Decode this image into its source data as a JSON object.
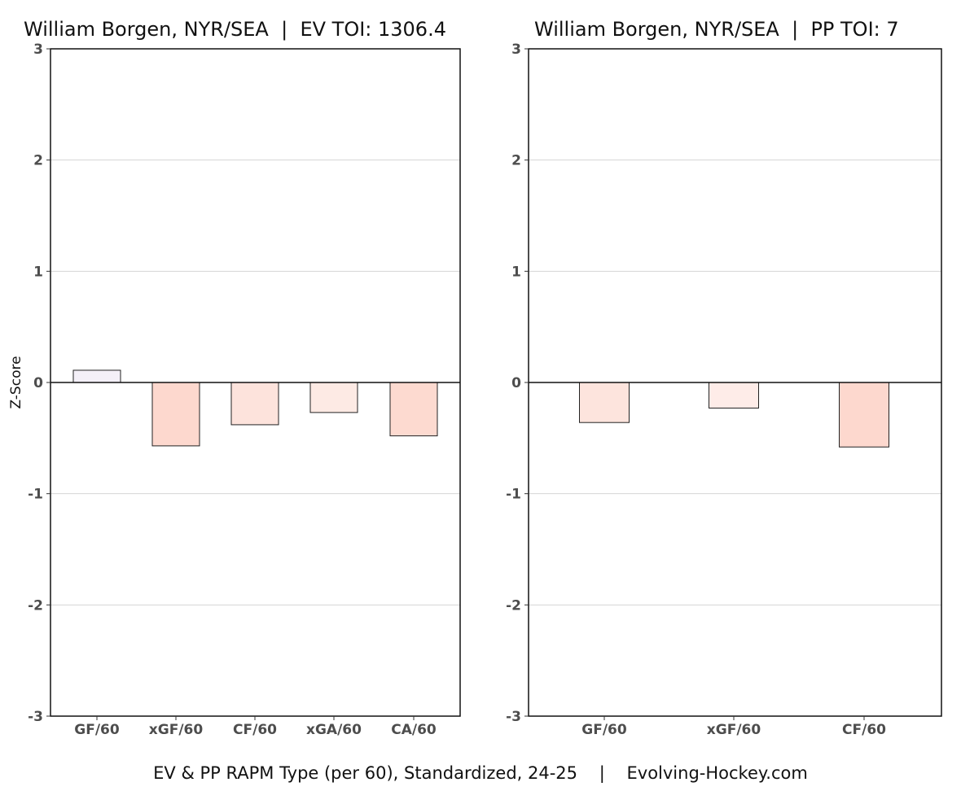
{
  "caption": "EV & PP RAPM Type (per 60), Standardized, 24-25    |    Evolving-Hockey.com",
  "chart_data": [
    {
      "type": "bar",
      "title": "William Borgen, NYR/SEA  |  EV TOI: 1306.4",
      "ylabel": "Z-Score",
      "xlabel": "",
      "ylim": [
        -3,
        3
      ],
      "yticks": [
        -3,
        -2,
        -1,
        0,
        1,
        2,
        3
      ],
      "grid": true,
      "categories": [
        "GF/60",
        "xGF/60",
        "CF/60",
        "xGA/60",
        "CA/60"
      ],
      "values": [
        0.11,
        -0.57,
        -0.38,
        -0.27,
        -0.48
      ],
      "colors": [
        "#f4f0f8",
        "#fdd8ce",
        "#fde3dc",
        "#fdeae4",
        "#fddad0"
      ]
    },
    {
      "type": "bar",
      "title": "William Borgen, NYR/SEA  |  PP TOI: 7",
      "ylabel": "",
      "xlabel": "",
      "ylim": [
        -3,
        3
      ],
      "yticks": [
        -3,
        -2,
        -1,
        0,
        1,
        2,
        3
      ],
      "grid": true,
      "categories": [
        "GF/60",
        "xGF/60",
        "CF/60"
      ],
      "values": [
        -0.36,
        -0.23,
        -0.58
      ],
      "colors": [
        "#fde4dd",
        "#feece8",
        "#fdd8ce"
      ]
    }
  ]
}
